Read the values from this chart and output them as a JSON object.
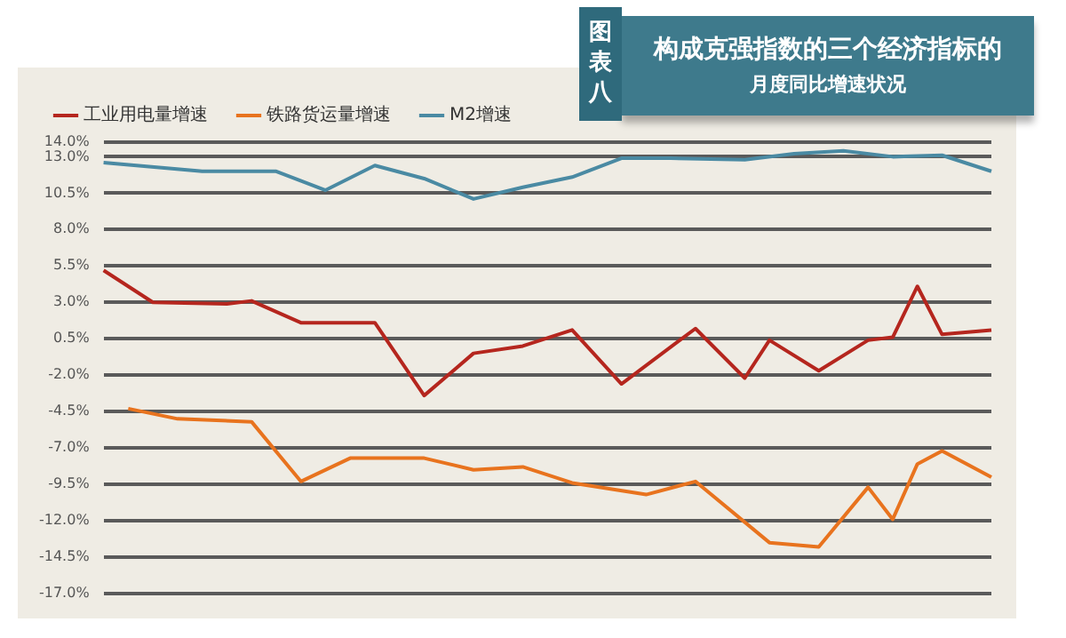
{
  "chart_data": {
    "type": "line",
    "title": "构成克强指数的三个经济指标的",
    "subtitle": "月度同比增速状况",
    "annotations": [
      "图表八"
    ],
    "categories": [
      null,
      null,
      null,
      null,
      null,
      null,
      null,
      null,
      null,
      null,
      null,
      null,
      null,
      null,
      null,
      null,
      null,
      null,
      null,
      null,
      null,
      null,
      null,
      null,
      null,
      null,
      null,
      null,
      null,
      null,
      null,
      null,
      null,
      null,
      null,
      null,
      null
    ],
    "tick_labels": "y",
    "ylim": [
      -17,
      14
    ],
    "yticks": [
      {
        "value": 14,
        "label": "14.0%"
      },
      {
        "value": 13,
        "label": "13.0%"
      },
      {
        "value": 10.5,
        "label": "10.5%"
      },
      {
        "value": 8,
        "label": "8.0%"
      },
      {
        "value": 5.5,
        "label": "5.5%"
      },
      {
        "value": 3,
        "label": "3.0%"
      },
      {
        "value": 0.5,
        "label": "0.5%"
      },
      {
        "value": -2,
        "label": "-2.0%"
      },
      {
        "value": -4.5,
        "label": "-4.5%"
      },
      {
        "value": -7,
        "label": "-7.0%"
      },
      {
        "value": -9.5,
        "label": "-9.5%"
      },
      {
        "value": -12,
        "label": "-12.0%"
      },
      {
        "value": -14.5,
        "label": "-14.5%"
      },
      {
        "value": -17,
        "label": "-17.0%"
      }
    ],
    "grid": "y",
    "legend": "top left",
    "marker": "none",
    "line_style": "solid",
    "series": [
      {
        "name": "工业用电量增速",
        "color": "#b5261e",
        "values": [
          5.2,
          null,
          3.0,
          null,
          null,
          2.9,
          3.1,
          null,
          1.6,
          null,
          null,
          1.6,
          null,
          -3.4,
          null,
          -0.5,
          null,
          0.0,
          null,
          1.1,
          null,
          -2.6,
          null,
          null,
          1.2,
          null,
          -2.2,
          0.4,
          null,
          -1.7,
          null,
          0.4,
          0.6,
          4.1,
          0.8,
          null,
          1.1
        ]
      },
      {
        "name": "铁路货运量增速",
        "color": "#e8731e",
        "values": [
          null,
          -4.3,
          null,
          -5.0,
          null,
          null,
          -5.2,
          null,
          -9.3,
          null,
          -7.7,
          null,
          null,
          -7.7,
          null,
          -8.5,
          null,
          -8.3,
          null,
          -9.4,
          null,
          null,
          -10.2,
          null,
          -9.3,
          null,
          null,
          -13.5,
          null,
          -13.8,
          null,
          -9.7,
          -11.9,
          -8.1,
          -7.2,
          null,
          -9.0
        ]
      },
      {
        "name": "M2增速",
        "color": "#4a8aa3",
        "values": [
          12.6,
          null,
          null,
          null,
          12.0,
          null,
          null,
          12.0,
          null,
          10.7,
          null,
          12.4,
          null,
          11.5,
          null,
          10.1,
          null,
          10.9,
          null,
          11.6,
          null,
          12.9,
          null,
          12.9,
          null,
          null,
          12.8,
          null,
          13.2,
          null,
          13.4,
          null,
          13.0,
          null,
          13.1,
          null,
          12.0
        ]
      }
    ]
  }
}
